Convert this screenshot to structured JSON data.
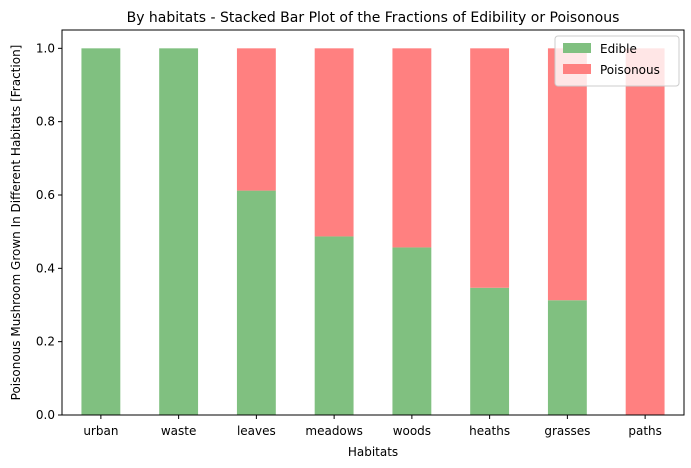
{
  "chart_data": {
    "type": "bar",
    "stacked": true,
    "title": "By habitats - Stacked Bar Plot of the Fractions of Edibility or Poisonous",
    "xlabel": "Habitats",
    "ylabel": "Poisonous Mushroom Grown In Different Habitats [Fraction]",
    "categories": [
      "urban",
      "waste",
      "leaves",
      "meadows",
      "woods",
      "heaths",
      "grasses",
      "paths"
    ],
    "series": [
      {
        "name": "Edible",
        "color": "#80c080",
        "values": [
          1.0,
          1.0,
          0.612,
          0.487,
          0.457,
          0.347,
          0.313,
          0.0
        ]
      },
      {
        "name": "Poisonous",
        "color": "#ff8080",
        "values": [
          0.0,
          0.0,
          0.388,
          0.513,
          0.543,
          0.653,
          0.687,
          1.0
        ]
      }
    ],
    "ylim": [
      0,
      1.05
    ],
    "yticks": [
      "0.0",
      "0.2",
      "0.4",
      "0.6",
      "0.8",
      "1.0"
    ],
    "legend_position": "top-right",
    "grid": false
  }
}
